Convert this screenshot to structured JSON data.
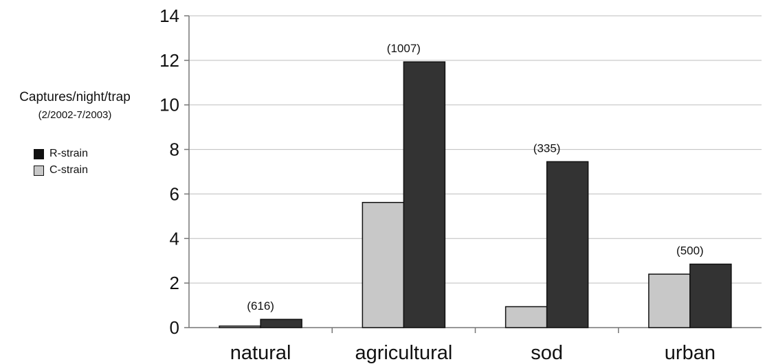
{
  "chart_data": {
    "type": "bar",
    "categories": [
      "natural",
      "agricultural",
      "sod",
      "urban"
    ],
    "series": [
      {
        "name": "C-strain",
        "values": [
          0.07,
          5.62,
          0.94,
          2.4
        ]
      },
      {
        "name": "R-strain",
        "values": [
          0.37,
          11.93,
          7.45,
          2.85
        ]
      }
    ],
    "annotations": [
      "(616)",
      "(1007)",
      "(335)",
      "(500)"
    ],
    "title": "",
    "ylabel": "Captures/night/trap",
    "ylabel_sub": "(2/2002-7/2003)",
    "xlabel": "",
    "ylim": [
      0,
      14
    ],
    "yticks": [
      0,
      2,
      4,
      6,
      8,
      10,
      12,
      14
    ],
    "grid": true,
    "legend": {
      "placement": "left",
      "entries": [
        {
          "label": "R-strain",
          "color": "#111111"
        },
        {
          "label": "C-strain",
          "color": "#c8c8c8"
        }
      ]
    },
    "colors": {
      "C-strain": "#c8c8c8",
      "R-strain": "#333333",
      "grid": "#bdbdbd",
      "axis": "#777777"
    }
  }
}
